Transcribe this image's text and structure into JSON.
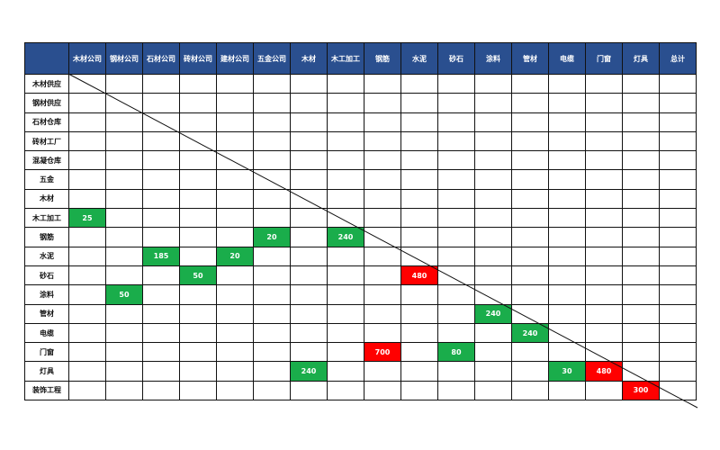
{
  "table": {
    "columns": [
      "木材公司",
      "钢材公司",
      "石材公司",
      "砖材公司",
      "建材公司",
      "五金公司",
      "木材",
      "木工加工",
      "钢筋",
      "水泥",
      "砂石",
      "涂料",
      "管材",
      "电缆",
      "门窗",
      "灯具",
      "总计"
    ],
    "rows": [
      "木材供应",
      "钢材供应",
      "石材仓库",
      "砖材工厂",
      "混凝仓库",
      "五金",
      "木材",
      "木工加工",
      "钢筋",
      "水泥",
      "砂石",
      "涂料",
      "管材",
      "电缆",
      "门窗",
      "灯具",
      "装饰工程"
    ],
    "cells": [
      {
        "row": 8,
        "col": 1,
        "value": "25",
        "status": "green"
      },
      {
        "row": 9,
        "col": 6,
        "value": "20",
        "status": "green"
      },
      {
        "row": 9,
        "col": 8,
        "value": "240",
        "status": "green"
      },
      {
        "row": 10,
        "col": 3,
        "value": "185",
        "status": "green"
      },
      {
        "row": 10,
        "col": 5,
        "value": "20",
        "status": "green"
      },
      {
        "row": 11,
        "col": 4,
        "value": "50",
        "status": "green"
      },
      {
        "row": 11,
        "col": 10,
        "value": "480",
        "status": "red"
      },
      {
        "row": 12,
        "col": 2,
        "value": "50",
        "status": "green"
      },
      {
        "row": 13,
        "col": 12,
        "value": "240",
        "status": "green"
      },
      {
        "row": 14,
        "col": 13,
        "value": "240",
        "status": "green"
      },
      {
        "row": 15,
        "col": 9,
        "value": "700",
        "status": "red"
      },
      {
        "row": 15,
        "col": 11,
        "value": "80",
        "status": "green"
      },
      {
        "row": 16,
        "col": 7,
        "value": "240",
        "status": "green"
      },
      {
        "row": 16,
        "col": 14,
        "value": "30",
        "status": "green"
      },
      {
        "row": 16,
        "col": 15,
        "value": "480",
        "status": "red"
      },
      {
        "row": 17,
        "col": 16,
        "value": "300",
        "status": "red"
      }
    ]
  },
  "colors": {
    "header": "#2a4f8f",
    "green": "#1aad4b",
    "red": "#ff0000"
  }
}
